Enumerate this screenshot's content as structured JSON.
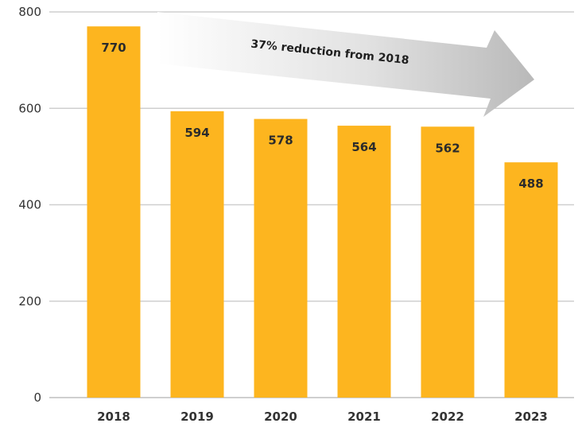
{
  "chart_data": {
    "type": "bar",
    "categories": [
      "2018",
      "2019",
      "2020",
      "2021",
      "2022",
      "2023"
    ],
    "values": [
      770,
      594,
      578,
      564,
      562,
      488
    ],
    "title": "",
    "xlabel": "",
    "ylabel": "",
    "ylim": [
      0,
      800
    ],
    "yticks": [
      "0",
      "200",
      "400",
      "600",
      "800"
    ],
    "grid": true,
    "bar_color": "#FDB51F",
    "annotation": "37% reduction from 2018"
  }
}
